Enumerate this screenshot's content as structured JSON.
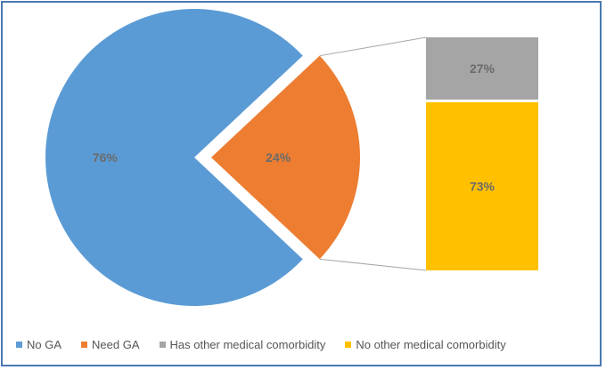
{
  "chart_data": {
    "type": "pie",
    "subtype": "bar-of-pie",
    "pie": {
      "slices": [
        {
          "name": "No GA",
          "value": 76,
          "label": "76%",
          "color": "#5b9bd5"
        },
        {
          "name": "Need GA",
          "value": 24,
          "label": "24%",
          "color": "#ed7d31",
          "exploded": true
        }
      ]
    },
    "bar": {
      "breakdown_of": "Need GA",
      "segments": [
        {
          "name": "Has other medical comorbidity",
          "value": 27,
          "label": "27%",
          "color": "#a5a5a5"
        },
        {
          "name": "No other medical comorbidity",
          "value": 73,
          "label": "73%",
          "color": "#ffc000"
        }
      ]
    },
    "legend": {
      "placement": "bottom-left",
      "items": [
        {
          "name": "No GA",
          "color": "#5b9bd5"
        },
        {
          "name": "Need GA",
          "color": "#ed7d31"
        },
        {
          "name": "Has other medical comorbidity",
          "color": "#a5a5a5"
        },
        {
          "name": "No other medical comorbidity",
          "color": "#ffc000"
        }
      ]
    },
    "connector_color": "#a6a6a6",
    "border_color": "#4a78b0"
  }
}
